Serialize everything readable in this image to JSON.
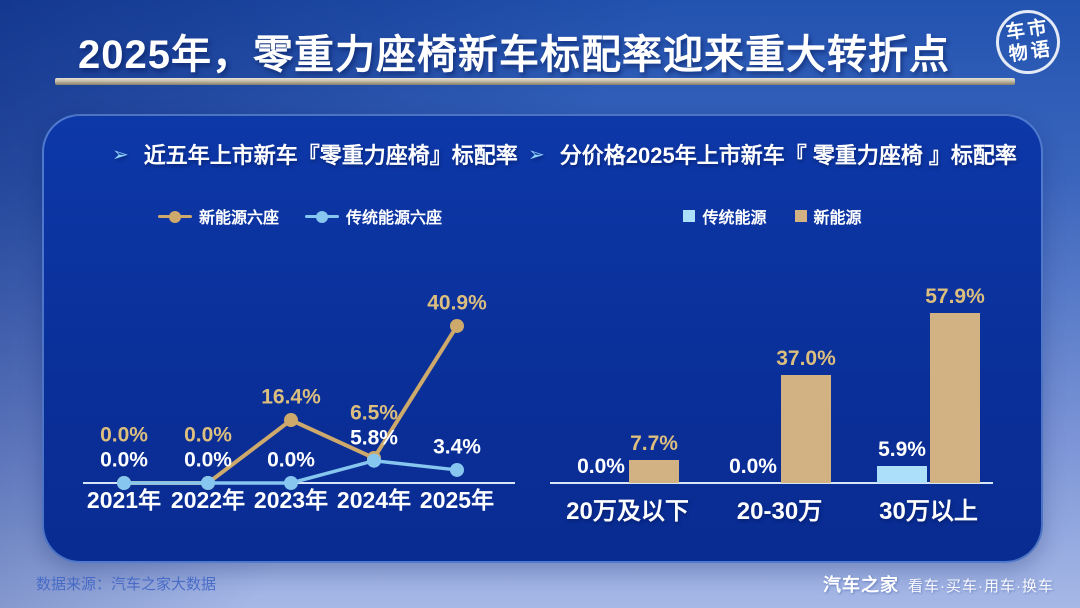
{
  "header": {
    "title": "2025年，零重力座椅新车标配率迎来重大转折点",
    "logo": {
      "row1": "车市",
      "row2": "物语"
    }
  },
  "panel": {
    "arrow": "➢"
  },
  "chart_data": [
    {
      "type": "line",
      "title": "近五年上市新车『零重力座椅』标配率",
      "categories": [
        "2021年",
        "2022年",
        "2023年",
        "2024年",
        "2025年"
      ],
      "series": [
        {
          "name": "新能源六座",
          "color": "#CDA96B",
          "label_color": "#DCBE7E",
          "values": [
            0.0,
            0.0,
            16.4,
            6.5,
            40.9
          ]
        },
        {
          "name": "传统能源六座",
          "color": "#86C6EF",
          "label_color": "#FFFFFF",
          "values": [
            0.0,
            0.0,
            0.0,
            5.8,
            3.4
          ]
        }
      ],
      "value_suffix": "%",
      "ylim": [
        0,
        45
      ],
      "grid": false,
      "legend_position": "top"
    },
    {
      "type": "bar",
      "title": "分价格2025年上市新车『 零重力座椅 』标配率",
      "categories": [
        "20万及以下",
        "20-30万",
        "30万以上"
      ],
      "series": [
        {
          "name": "传统能源",
          "color": "#ABDFFA",
          "label_color": "#FFFFFF",
          "values": [
            0.0,
            0.0,
            5.9
          ]
        },
        {
          "name": "新能源",
          "color": "#D2B183",
          "label_color": "#DCBE7E",
          "values": [
            7.7,
            37.0,
            57.9
          ]
        }
      ],
      "value_suffix": "%",
      "ylim": [
        0,
        65
      ],
      "grid": false,
      "legend_position": "top"
    }
  ],
  "footer": {
    "source": "数据来源：汽车之家大数据",
    "brand": "汽车之家",
    "tagline": "看车·买车·用车·换车"
  },
  "colors": {
    "page_bg_top": "#2253B0",
    "page_bg_bottom": "#A6B8E6",
    "panel_bg": "#0B33A0",
    "panel_border": "#A0CDFF",
    "title_text": "#FFFFFF",
    "separator": "#C5BDA9",
    "gold": "#D2B183",
    "light_blue": "#9AD3F5",
    "axis_line": "#D6E6F8",
    "footer_source_text": "#3E63C5"
  }
}
